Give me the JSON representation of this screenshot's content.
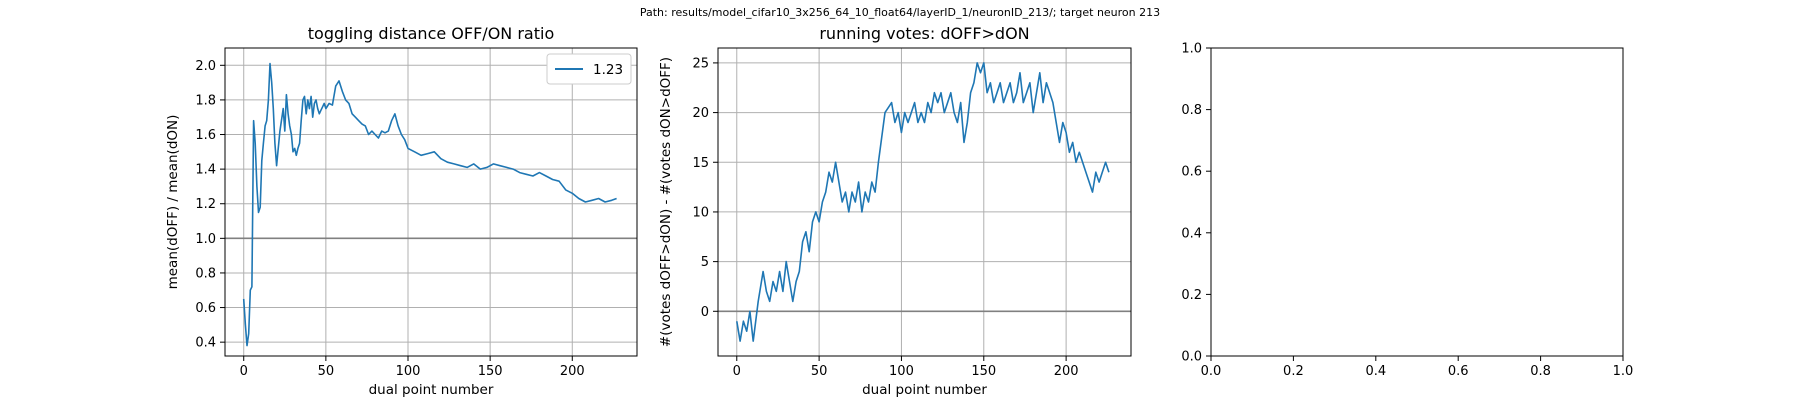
{
  "figure": {
    "suptitle": "Path: results/model_cifar10_3x256_64_10_float64/layerID_1/neuronID_213/; target neuron 213"
  },
  "colors": {
    "line": "#1f77b4",
    "refline": "#808080",
    "grid": "#b0b0b0"
  },
  "chart_data": [
    {
      "type": "line",
      "title": "toggling distance OFF/ON ratio",
      "xlabel": "dual point number",
      "ylabel": "mean(dOFF) / mean(dON)",
      "xlim": [
        -11.4,
        239.4
      ],
      "ylim": [
        0.32,
        2.1
      ],
      "xticks": [
        0,
        50,
        100,
        150,
        200
      ],
      "yticks": [
        0.4,
        0.6,
        0.8,
        1.0,
        1.2,
        1.4,
        1.6,
        1.8,
        2.0
      ],
      "ytick_labels": [
        "0.4",
        "0.6",
        "0.8",
        "1.0",
        "1.2",
        "1.4",
        "1.6",
        "1.8",
        "2.0"
      ],
      "grid": true,
      "hline": 1.0,
      "legend": {
        "position": "upper right",
        "entries": [
          "1.23"
        ]
      },
      "series": [
        {
          "name": "1.23",
          "x": [
            0,
            1,
            2,
            3,
            4,
            5,
            6,
            7,
            8,
            9,
            10,
            11,
            12,
            13,
            14,
            15,
            16,
            17,
            18,
            19,
            20,
            22,
            24,
            25,
            26,
            27,
            28,
            29,
            30,
            31,
            32,
            33,
            34,
            35,
            36,
            37,
            38,
            39,
            40,
            41,
            42,
            43,
            44,
            45,
            46,
            47,
            48,
            49,
            50,
            52,
            54,
            56,
            58,
            60,
            62,
            64,
            66,
            68,
            70,
            72,
            74,
            76,
            78,
            80,
            82,
            84,
            86,
            88,
            90,
            92,
            94,
            96,
            98,
            100,
            104,
            108,
            112,
            116,
            120,
            124,
            128,
            132,
            136,
            140,
            144,
            148,
            152,
            156,
            160,
            164,
            168,
            172,
            176,
            180,
            184,
            188,
            192,
            196,
            200,
            204,
            208,
            212,
            216,
            220,
            224,
            227
          ],
          "values": [
            0.65,
            0.5,
            0.38,
            0.45,
            0.7,
            0.72,
            1.68,
            1.55,
            1.3,
            1.15,
            1.18,
            1.45,
            1.55,
            1.65,
            1.68,
            1.8,
            2.01,
            1.9,
            1.75,
            1.55,
            1.42,
            1.62,
            1.75,
            1.62,
            1.83,
            1.72,
            1.65,
            1.6,
            1.5,
            1.52,
            1.48,
            1.52,
            1.55,
            1.68,
            1.8,
            1.82,
            1.72,
            1.8,
            1.75,
            1.82,
            1.7,
            1.78,
            1.8,
            1.75,
            1.72,
            1.74,
            1.76,
            1.78,
            1.75,
            1.78,
            1.77,
            1.88,
            1.91,
            1.85,
            1.8,
            1.78,
            1.72,
            1.7,
            1.68,
            1.66,
            1.65,
            1.6,
            1.62,
            1.6,
            1.58,
            1.62,
            1.61,
            1.62,
            1.68,
            1.72,
            1.65,
            1.6,
            1.57,
            1.52,
            1.5,
            1.48,
            1.49,
            1.5,
            1.46,
            1.44,
            1.43,
            1.42,
            1.41,
            1.43,
            1.4,
            1.41,
            1.43,
            1.42,
            1.41,
            1.4,
            1.38,
            1.37,
            1.36,
            1.38,
            1.36,
            1.34,
            1.33,
            1.28,
            1.26,
            1.23,
            1.21,
            1.22,
            1.23,
            1.21,
            1.22,
            1.23
          ]
        }
      ]
    },
    {
      "type": "line",
      "title": "running votes: dOFF>dON",
      "xlabel": "dual point number",
      "ylabel": "#(votes dOFF>dON) - #(votes dON>dOFF)",
      "xlim": [
        -11.4,
        239.4
      ],
      "ylim": [
        -4.5,
        26.5
      ],
      "xticks": [
        0,
        50,
        100,
        150,
        200
      ],
      "yticks": [
        0,
        5,
        10,
        15,
        20,
        25
      ],
      "ytick_labels": [
        "0",
        "5",
        "10",
        "15",
        "20",
        "25"
      ],
      "grid": true,
      "hline": 0,
      "series": [
        {
          "x": [
            0,
            2,
            4,
            6,
            8,
            10,
            13,
            16,
            18,
            20,
            22,
            24,
            26,
            28,
            30,
            32,
            34,
            36,
            38,
            40,
            42,
            44,
            46,
            48,
            50,
            52,
            54,
            56,
            58,
            60,
            62,
            64,
            66,
            68,
            70,
            72,
            74,
            76,
            78,
            80,
            82,
            84,
            86,
            90,
            94,
            96,
            98,
            100,
            102,
            104,
            106,
            108,
            110,
            112,
            114,
            116,
            118,
            120,
            122,
            124,
            126,
            128,
            130,
            132,
            134,
            136,
            138,
            140,
            142,
            144,
            146,
            148,
            150,
            152,
            154,
            156,
            158,
            160,
            162,
            164,
            166,
            168,
            170,
            172,
            174,
            176,
            178,
            180,
            182,
            184,
            186,
            188,
            190,
            192,
            194,
            196,
            198,
            200,
            202,
            204,
            206,
            208,
            210,
            212,
            214,
            216,
            218,
            220,
            222,
            224,
            226
          ],
          "values": [
            -1,
            -3,
            -1,
            -2,
            0,
            -3,
            1,
            4,
            2,
            1,
            3,
            2,
            4,
            2,
            5,
            3,
            1,
            3,
            4,
            7,
            8,
            6,
            9,
            10,
            9,
            11,
            12,
            14,
            13,
            15,
            13,
            11,
            12,
            10,
            12,
            11,
            13,
            10,
            12,
            11,
            13,
            12,
            15,
            20,
            21,
            19,
            20,
            18,
            20,
            19,
            20,
            21,
            19,
            20,
            19,
            21,
            20,
            22,
            21,
            22,
            20,
            21,
            22,
            20,
            19,
            21,
            17,
            19,
            22,
            23,
            25,
            24,
            25,
            22,
            23,
            21,
            22,
            23,
            21,
            22,
            23,
            21,
            22,
            24,
            21,
            22,
            23,
            20,
            22,
            24,
            21,
            23,
            22,
            21,
            19,
            17,
            19,
            18,
            16,
            17,
            15,
            16,
            15,
            14,
            13,
            12,
            14,
            13,
            14,
            15,
            14
          ]
        }
      ]
    },
    {
      "type": "empty",
      "xlim": [
        0,
        1
      ],
      "ylim": [
        0,
        1
      ],
      "xticks": [
        0,
        0.2,
        0.4,
        0.6,
        0.8,
        1.0
      ],
      "yticks": [
        0,
        0.2,
        0.4,
        0.6,
        0.8,
        1.0
      ],
      "xtick_labels": [
        "0.0",
        "0.2",
        "0.4",
        "0.6",
        "0.8",
        "1.0"
      ],
      "ytick_labels": [
        "0.0",
        "0.2",
        "0.4",
        "0.6",
        "0.8",
        "1.0"
      ],
      "grid": false
    }
  ]
}
